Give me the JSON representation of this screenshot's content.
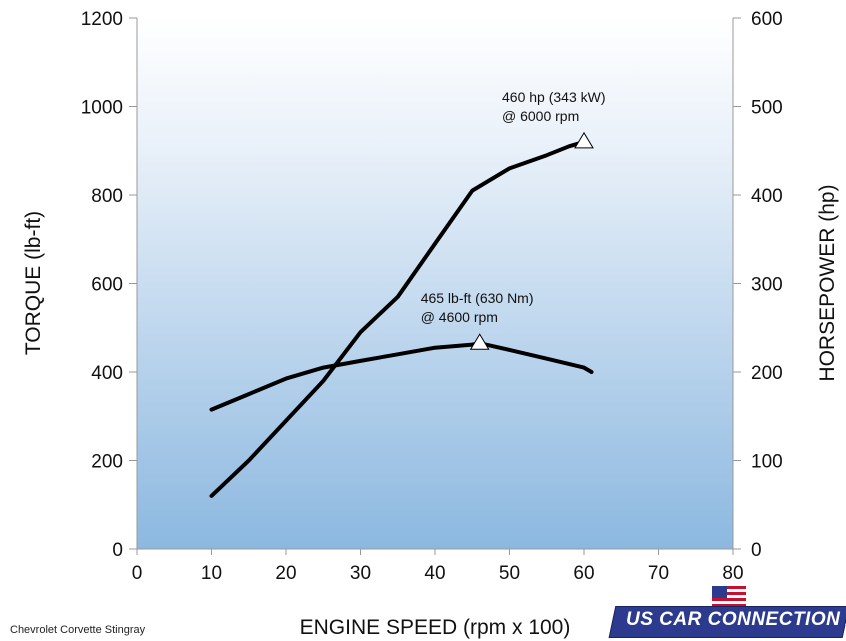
{
  "chart_data": {
    "type": "line",
    "xlabel": "ENGINE SPEED (rpm x 100)",
    "ylabel_left": "TORQUE (lb-ft)",
    "ylabel_right": "HORSEPOWER (hp)",
    "xlim": [
      0,
      80
    ],
    "ylim_left": [
      0,
      1200
    ],
    "ylim_right": [
      0,
      600
    ],
    "x_ticks": [
      "0",
      "10",
      "20",
      "30",
      "40",
      "50",
      "60",
      "70",
      "80"
    ],
    "y_ticks_left": [
      "0",
      "200",
      "400",
      "600",
      "800",
      "1000",
      "1200"
    ],
    "y_ticks_right": [
      "0",
      "100",
      "200",
      "300",
      "400",
      "500",
      "600"
    ],
    "grid": false,
    "background": "light blue vertical gradient",
    "series": [
      {
        "axis": "left",
        "x": [
          10,
          15,
          20,
          25,
          30,
          35,
          40,
          45,
          46,
          50,
          55,
          60,
          61
        ],
        "y": [
          315,
          350,
          385,
          410,
          425,
          440,
          455,
          462,
          465,
          450,
          430,
          410,
          400
        ]
      },
      {
        "axis": "right",
        "x": [
          10,
          15,
          20,
          25,
          30,
          35,
          40,
          45,
          50,
          55,
          58,
          60
        ],
        "y": [
          60,
          100,
          145,
          190,
          245,
          285,
          345,
          405,
          430,
          445,
          455,
          460
        ]
      }
    ],
    "annotations": [
      {
        "line1": "460 hp (343 kW)",
        "line2": "@ 6000 rpm",
        "x": 60,
        "y": 460,
        "axis": "right"
      },
      {
        "line1": "465 lb-ft (630 Nm)",
        "line2": "@ 4600 rpm",
        "x": 46,
        "y": 465,
        "axis": "left"
      }
    ],
    "footnote": "Chevrolet Corvette Stingray"
  },
  "logo": {
    "text": "US CAR CONNECTION AG"
  },
  "colors": {
    "line": "#000000",
    "bg_top": "#f4f8fd",
    "bg_bottom": "#8eb9e1"
  }
}
